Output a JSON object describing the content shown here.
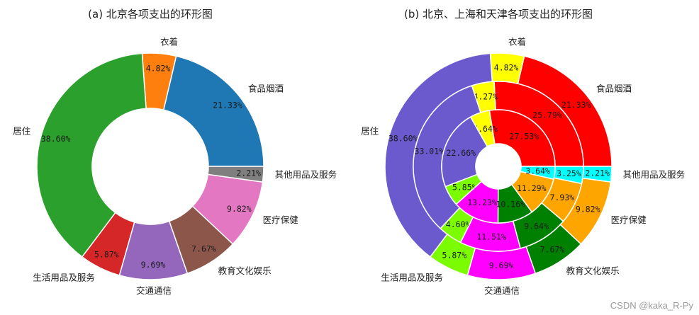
{
  "chart_data": [
    {
      "type": "pie",
      "title": "(a) 北京各项支出的环形图",
      "categories": [
        "食品烟酒",
        "衣着",
        "居住",
        "生活用品及服务",
        "交通通信",
        "教育文化娱乐",
        "医疗保健",
        "其他用品及服务"
      ],
      "colors": [
        "#1f77b4",
        "#ff7f0e",
        "#2ca02c",
        "#d62728",
        "#9467bd",
        "#8c564b",
        "#e377c2",
        "#7f7f7f"
      ],
      "series": [
        {
          "name": "北京",
          "values": [
            21.33,
            4.82,
            38.6,
            5.87,
            9.69,
            7.67,
            9.82,
            2.21
          ]
        }
      ],
      "value_labels": [
        [
          "21.33%",
          "4.82%",
          "38.60%",
          "5.87%",
          "9.69%",
          "7.67%",
          "9.82%",
          "2.21%"
        ]
      ]
    },
    {
      "type": "pie",
      "title": "(b) 北京、上海和天津各项支出的环形图",
      "categories": [
        "食品烟酒",
        "衣着",
        "居住",
        "生活用品及服务",
        "交通通信",
        "教育文化娱乐",
        "医疗保健",
        "其他用品及服务"
      ],
      "colors": [
        "#ff0000",
        "#ffff00",
        "#6a5acd",
        "#7cfc00",
        "#ff00ff",
        "#008000",
        "#ffa500",
        "#00ffff"
      ],
      "series": [
        {
          "values": [
            21.33,
            4.82,
            38.6,
            5.87,
            9.69,
            7.67,
            9.82,
            2.21
          ]
        },
        {
          "values": [
            25.79,
            4.27,
            33.01,
            4.6,
            11.51,
            9.64,
            7.93,
            3.25
          ]
        },
        {
          "values": [
            27.53,
            5.64,
            22.66,
            5.85,
            13.23,
            10.16,
            11.29,
            3.64
          ]
        }
      ],
      "value_labels": [
        [
          "21.33%",
          "4.82%",
          "38.60%",
          "5.87%",
          "9.69%",
          "7.67%",
          "9.82%",
          "2.21%"
        ],
        [
          "25.79%",
          "4.27%",
          "33.01%",
          "4.60%",
          "11.51%",
          "9.64%",
          "7.93%",
          "3.25%"
        ],
        [
          "27.53%",
          "5.64%",
          "22.66%",
          "5.85%",
          "13.23%",
          "10.16%",
          "11.29%",
          "3.64%"
        ]
      ]
    }
  ],
  "watermark": "CSDN @kaka_R-Py"
}
